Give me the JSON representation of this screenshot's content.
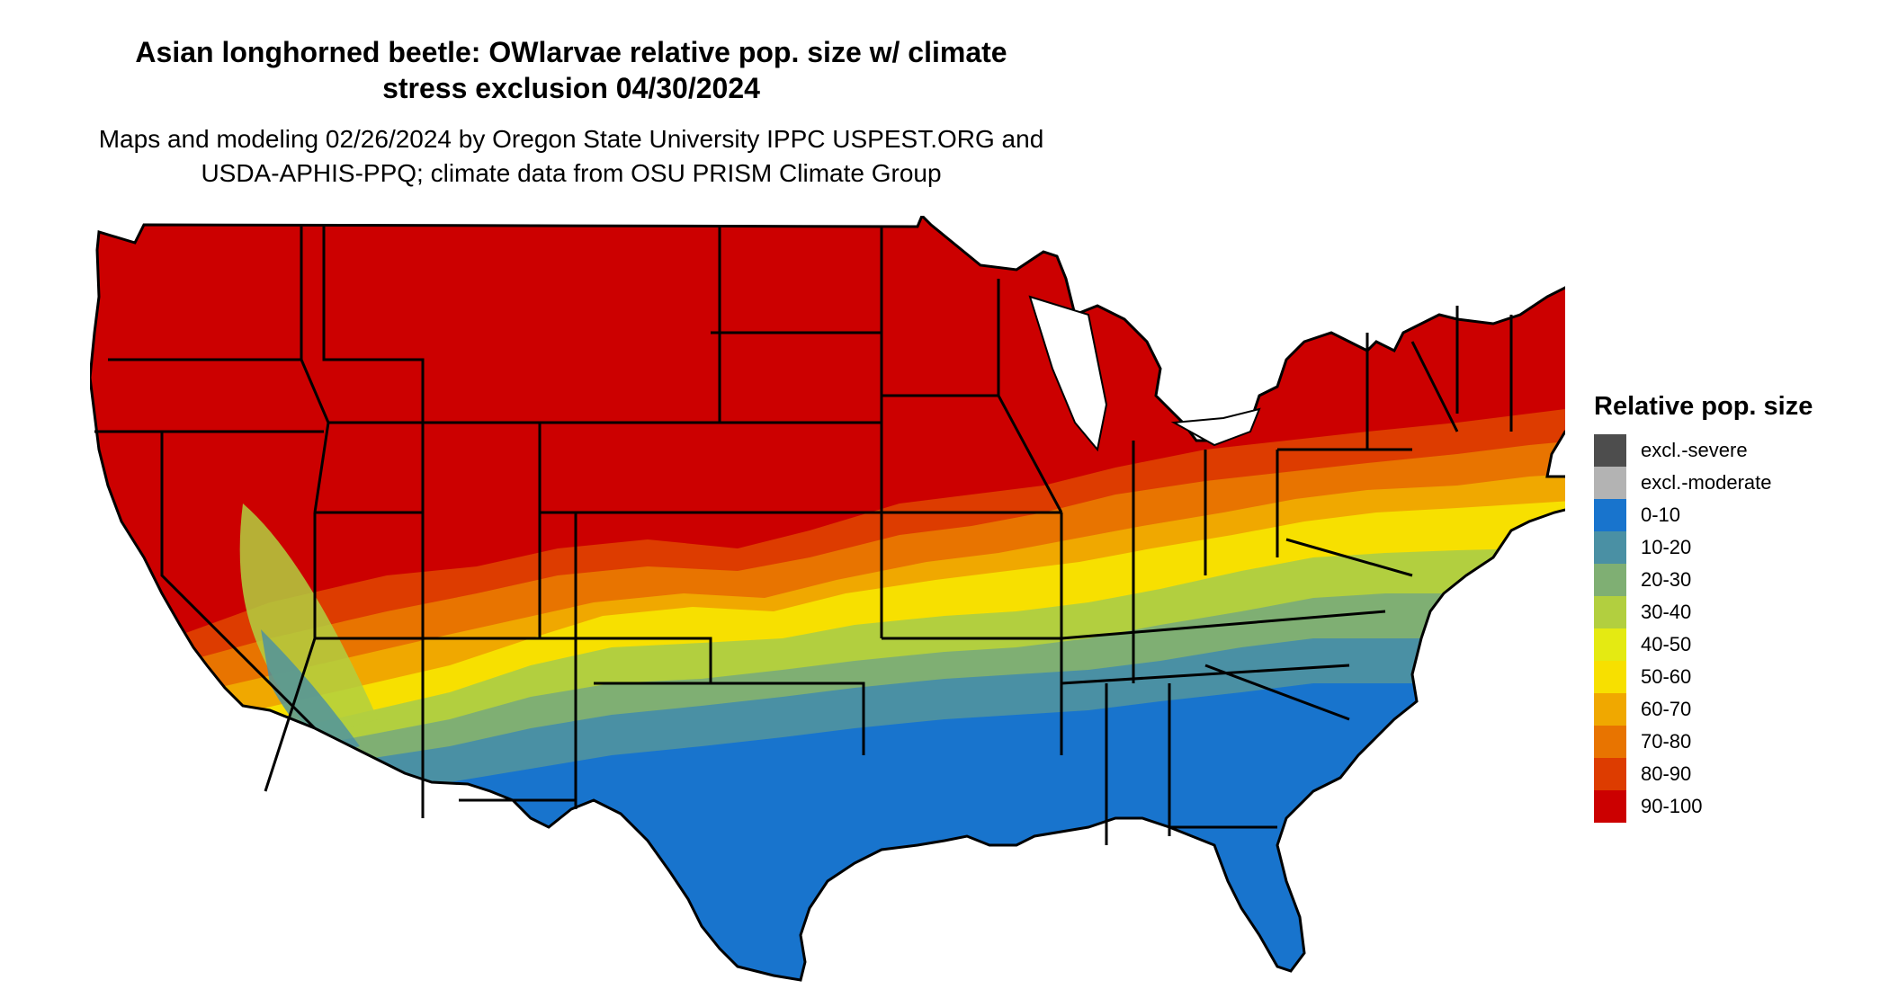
{
  "title_line1": "Asian longhorned beetle: OWlarvae relative pop. size w/ climate",
  "title_line2": "stress exclusion 04/30/2024",
  "subtitle_line1": "Maps and modeling 02/26/2024 by Oregon State University IPPC USPEST.ORG and",
  "subtitle_line2": "USDA-APHIS-PPQ; climate data from OSU PRISM Climate Group",
  "legend": {
    "title": "Relative pop. size",
    "items": [
      {
        "label": "excl.-severe",
        "color": "#4d4d4d"
      },
      {
        "label": "excl.-moderate",
        "color": "#b3b3b3"
      },
      {
        "label": "0-10",
        "color": "#1874cd"
      },
      {
        "label": "10-20",
        "color": "#4a90a4"
      },
      {
        "label": "20-30",
        "color": "#7faf73"
      },
      {
        "label": "30-40",
        "color": "#b2cf3f"
      },
      {
        "label": "40-50",
        "color": "#e4ea12"
      },
      {
        "label": "50-60",
        "color": "#f7e000"
      },
      {
        "label": "60-70",
        "color": "#f0a800"
      },
      {
        "label": "70-80",
        "color": "#e87400"
      },
      {
        "label": "80-90",
        "color": "#dd3c00"
      },
      {
        "label": "90-100",
        "color": "#cc0000"
      }
    ]
  },
  "colors": {
    "background": "#ffffff",
    "border": "#000000"
  }
}
